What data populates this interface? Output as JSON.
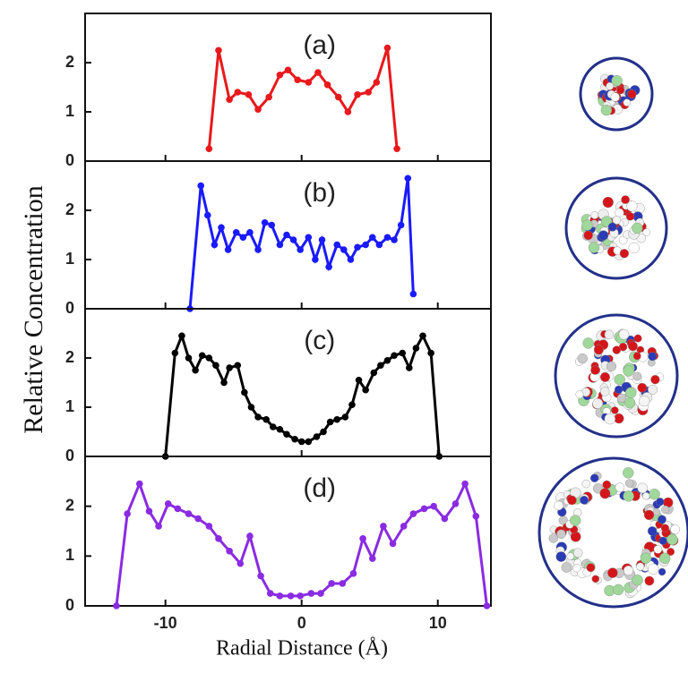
{
  "figure": {
    "x_label": "Radial Distance (Å)",
    "y_label": "Relative Concentration"
  },
  "chart_data": [
    {
      "type": "line",
      "annotation": "(a)",
      "color": "#e8191c",
      "x": [
        -6.8,
        -6.1,
        -5.3,
        -4.7,
        -3.9,
        -3.2,
        -2.4,
        -1.6,
        -1.0,
        -0.3,
        0.5,
        1.2,
        1.9,
        2.7,
        3.4,
        4.1,
        4.9,
        5.5,
        6.3,
        7.0
      ],
      "values": [
        0.25,
        2.25,
        1.25,
        1.4,
        1.35,
        1.05,
        1.3,
        1.75,
        1.85,
        1.65,
        1.6,
        1.8,
        1.55,
        1.3,
        1.0,
        1.35,
        1.4,
        1.6,
        2.3,
        0.25
      ],
      "xlim": [
        -15.9,
        13.9
      ],
      "ylim": [
        0,
        3
      ],
      "yticks": [
        0,
        1,
        2
      ],
      "xticks": [
        -10,
        0,
        10
      ]
    },
    {
      "type": "line",
      "annotation": "(b)",
      "color": "#1a1aff",
      "x": [
        -8.2,
        -7.4,
        -6.9,
        -6.4,
        -5.9,
        -5.4,
        -4.8,
        -4.3,
        -3.8,
        -3.2,
        -2.7,
        -2.2,
        -1.6,
        -1.1,
        -0.6,
        -0.1,
        0.5,
        1.0,
        1.5,
        2.0,
        2.6,
        3.1,
        3.6,
        4.1,
        4.7,
        5.2,
        5.7,
        6.3,
        6.8,
        7.3,
        7.8,
        8.2
      ],
      "values": [
        0,
        2.5,
        1.9,
        1.3,
        1.65,
        1.2,
        1.55,
        1.45,
        1.55,
        1.2,
        1.75,
        1.7,
        1.3,
        1.5,
        1.4,
        1.2,
        1.45,
        1.0,
        1.4,
        0.85,
        1.3,
        1.2,
        1.0,
        1.25,
        1.3,
        1.45,
        1.3,
        1.45,
        1.4,
        1.7,
        2.65,
        0.3
      ],
      "xlim": [
        -15.9,
        13.9
      ],
      "ylim": [
        0,
        3
      ],
      "yticks": [
        0,
        1,
        2
      ],
      "xticks": [
        -10,
        0,
        10
      ]
    },
    {
      "type": "line",
      "annotation": "(c)",
      "color": "#000000",
      "x": [
        -10,
        -9.3,
        -8.8,
        -8.3,
        -7.8,
        -7.3,
        -6.8,
        -6.3,
        -5.7,
        -5.3,
        -4.7,
        -4.2,
        -3.7,
        -3.2,
        -2.6,
        -2.1,
        -1.6,
        -1.1,
        -0.5,
        0,
        0.5,
        1.1,
        1.6,
        2.1,
        2.6,
        3.2,
        3.7,
        4.2,
        4.7,
        5.3,
        5.8,
        6.3,
        6.8,
        7.4,
        7.9,
        8.4,
        8.9,
        9.5,
        10.1
      ],
      "values": [
        0,
        2.1,
        2.45,
        2.0,
        1.75,
        2.05,
        2.0,
        1.85,
        1.5,
        1.8,
        1.85,
        1.3,
        1.0,
        0.8,
        0.75,
        0.6,
        0.55,
        0.45,
        0.35,
        0.3,
        0.3,
        0.4,
        0.5,
        0.7,
        0.75,
        0.8,
        1.05,
        1.55,
        1.35,
        1.7,
        1.85,
        1.95,
        2.05,
        2.1,
        1.8,
        2.2,
        2.45,
        2.1,
        0
      ],
      "xlim": [
        -15.9,
        13.9
      ],
      "ylim": [
        0,
        3
      ],
      "yticks": [
        0,
        1,
        2
      ],
      "xticks": [
        -10,
        0,
        10
      ]
    },
    {
      "type": "line",
      "annotation": "(d)",
      "color": "#8a2be2",
      "x": [
        -13.6,
        -12.8,
        -11.9,
        -11.2,
        -10.5,
        -9.8,
        -9.1,
        -8.3,
        -7.6,
        -6.8,
        -6.1,
        -5.3,
        -4.5,
        -3.8,
        -3.0,
        -2.3,
        -1.6,
        -0.8,
        -0.1,
        0.7,
        1.4,
        2.2,
        3.0,
        3.8,
        4.5,
        5.2,
        6.0,
        6.7,
        7.5,
        8.2,
        9.0,
        9.7,
        10.5,
        11.3,
        12.0,
        12.8,
        13.6
      ],
      "values": [
        0,
        1.85,
        2.45,
        1.9,
        1.6,
        2.05,
        1.95,
        1.85,
        1.75,
        1.6,
        1.35,
        1.1,
        0.85,
        1.4,
        0.6,
        0.25,
        0.2,
        0.2,
        0.2,
        0.25,
        0.25,
        0.45,
        0.45,
        0.65,
        1.35,
        0.95,
        1.6,
        1.25,
        1.6,
        1.85,
        1.95,
        2.0,
        1.75,
        2.05,
        2.45,
        1.8,
        0
      ],
      "xlim": [
        -15.9,
        13.9
      ],
      "ylim": [
        0,
        3
      ],
      "yticks": [
        0,
        1,
        2
      ],
      "xticks": [
        -10,
        0,
        10
      ]
    }
  ]
}
